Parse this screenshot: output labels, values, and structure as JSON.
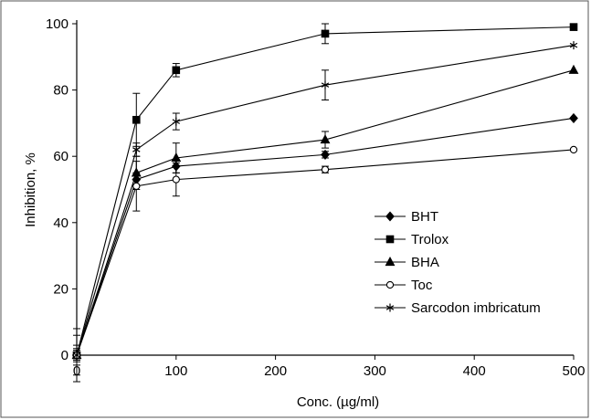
{
  "chart_data": {
    "type": "line",
    "xlabel": "Conc. (µg/ml)",
    "ylabel": "Inhibition, %",
    "xlim": [
      0,
      500
    ],
    "ylim": [
      0,
      100
    ],
    "xticks": [
      "0",
      "100",
      "200",
      "300",
      "400",
      "500"
    ],
    "yticks": [
      "0",
      "20",
      "40",
      "60",
      "80",
      "100"
    ],
    "x": [
      0,
      60,
      100,
      250,
      500
    ],
    "legend_position": "bottom-right",
    "series": [
      {
        "name": "BHT",
        "marker": "diamond",
        "values": [
          0,
          53,
          57,
          60.5,
          71.5
        ],
        "errors": [
          1.5,
          2,
          2,
          1,
          0
        ]
      },
      {
        "name": "Trolox",
        "marker": "square",
        "values": [
          0,
          71,
          86,
          97,
          99
        ],
        "errors": [
          2,
          8,
          2,
          3,
          0
        ]
      },
      {
        "name": "BHA",
        "marker": "triangle",
        "values": [
          0,
          55,
          59.5,
          65,
          86
        ],
        "errors": [
          8,
          5,
          4.5,
          2.5,
          0
        ]
      },
      {
        "name": "Toc",
        "marker": "circle-open",
        "values": [
          0,
          51,
          53,
          56,
          62
        ],
        "errors": [
          3,
          7.5,
          5,
          1,
          0
        ]
      },
      {
        "name": "Sarcodon imbricatum",
        "marker": "asterisk",
        "values": [
          0,
          62,
          70.5,
          81.5,
          93.5
        ],
        "errors": [
          6,
          2,
          2.5,
          4.5,
          0
        ]
      }
    ]
  }
}
